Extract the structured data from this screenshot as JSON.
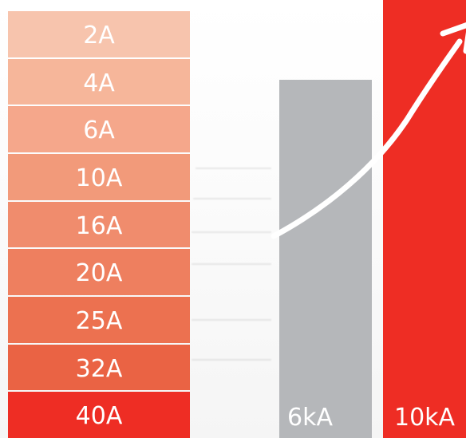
{
  "ratings": [
    {
      "label": "2A",
      "color": "#f7c4ad"
    },
    {
      "label": "4A",
      "color": "#f6b69a"
    },
    {
      "label": "6A",
      "color": "#f5a78b"
    },
    {
      "label": "10A",
      "color": "#f29a7a"
    },
    {
      "label": "16A",
      "color": "#f08c6d"
    },
    {
      "label": "20A",
      "color": "#ee7f5f"
    },
    {
      "label": "25A",
      "color": "#ec7150"
    },
    {
      "label": "32A",
      "color": "#ea6344"
    },
    {
      "label": "40A",
      "color": "#ee2d24"
    }
  ],
  "bars": {
    "low": {
      "label": "6kA",
      "color": "#b5b7ba"
    },
    "high": {
      "label": "10kA",
      "color": "#ee2d24"
    }
  },
  "arrow": {
    "color": "#ffffff",
    "icon": "upward-curved-arrow-icon"
  }
}
